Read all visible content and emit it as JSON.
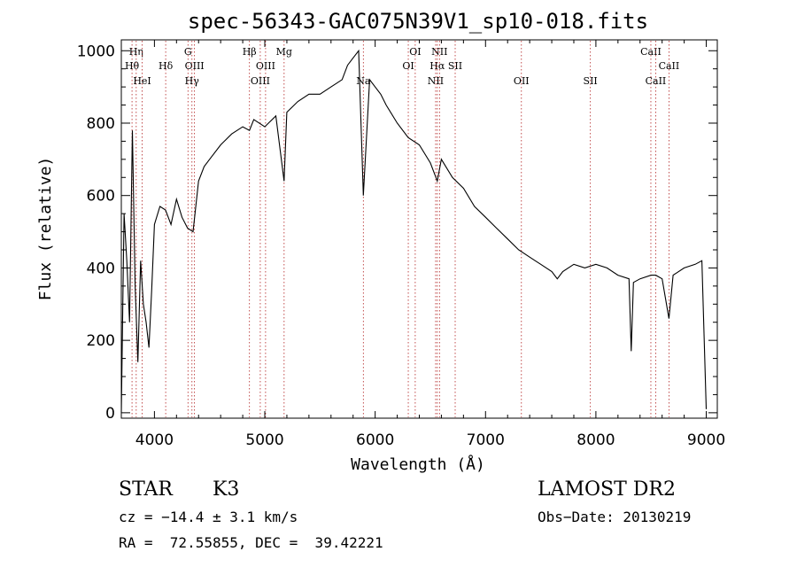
{
  "chart_data": {
    "type": "line",
    "title": "spec-56343-GAC075N39V1_sp10-018.fits",
    "xlabel": "Wavelength (Å)",
    "ylabel": "Flux (relative)",
    "xlim": [
      3700,
      9100
    ],
    "ylim": [
      -15,
      1030
    ],
    "xticks": [
      4000,
      5000,
      6000,
      7000,
      8000,
      9000
    ],
    "yticks": [
      0,
      200,
      400,
      600,
      800,
      1000
    ],
    "grid": false,
    "line_color": "#000000",
    "marker_color": "#b22222",
    "spectrum": {
      "x": [
        3700,
        3725,
        3750,
        3775,
        3800,
        3825,
        3850,
        3875,
        3900,
        3925,
        3950,
        3975,
        4000,
        4050,
        4100,
        4150,
        4200,
        4250,
        4300,
        4350,
        4400,
        4450,
        4500,
        4600,
        4700,
        4800,
        4861,
        4900,
        5000,
        5100,
        5175,
        5200,
        5300,
        5400,
        5500,
        5600,
        5700,
        5750,
        5800,
        5850,
        5893,
        5950,
        6000,
        6050,
        6100,
        6200,
        6300,
        6400,
        6500,
        6563,
        6600,
        6700,
        6800,
        6900,
        7000,
        7100,
        7200,
        7300,
        7400,
        7450,
        7500,
        7600,
        7650,
        7700,
        7800,
        7900,
        8000,
        8100,
        8200,
        8300,
        8320,
        8340,
        8400,
        8500,
        8542,
        8600,
        8662,
        8700,
        8800,
        8900,
        8960,
        9000
      ],
      "y": [
        0,
        550,
        420,
        250,
        780,
        350,
        140,
        420,
        300,
        250,
        180,
        340,
        520,
        570,
        560,
        520,
        590,
        540,
        510,
        500,
        640,
        680,
        700,
        740,
        770,
        790,
        780,
        810,
        790,
        820,
        640,
        830,
        860,
        880,
        880,
        900,
        920,
        960,
        980,
        1000,
        600,
        920,
        900,
        880,
        850,
        800,
        760,
        740,
        690,
        640,
        700,
        650,
        620,
        570,
        540,
        510,
        480,
        450,
        430,
        420,
        410,
        390,
        370,
        390,
        410,
        400,
        410,
        400,
        380,
        370,
        170,
        360,
        370,
        380,
        380,
        370,
        260,
        380,
        400,
        410,
        420,
        10
      ]
    },
    "lines": [
      {
        "label": "Hη",
        "x": 3835,
        "row": 1
      },
      {
        "label": "Hθ",
        "x": 3797,
        "row": 2
      },
      {
        "label": "HeI",
        "x": 3889,
        "row": 3
      },
      {
        "label": "Hδ",
        "x": 4102,
        "row": 2
      },
      {
        "label": "G",
        "x": 4304,
        "row": 1
      },
      {
        "label": "OIII",
        "x": 4363,
        "row": 2
      },
      {
        "label": "Hγ",
        "x": 4340,
        "row": 3
      },
      {
        "label": "Hβ",
        "x": 4861,
        "row": 1
      },
      {
        "label": "OIII",
        "x": 5007,
        "row": 2
      },
      {
        "label": "OIII",
        "x": 4959,
        "row": 3
      },
      {
        "label": "Mg",
        "x": 5175,
        "row": 1
      },
      {
        "label": "Na",
        "x": 5893,
        "row": 3
      },
      {
        "label": "OI",
        "x": 6363,
        "row": 1
      },
      {
        "label": "OI",
        "x": 6300,
        "row": 2
      },
      {
        "label": "NII",
        "x": 6583,
        "row": 1
      },
      {
        "label": "Hα",
        "x": 6563,
        "row": 2
      },
      {
        "label": "SII",
        "x": 6725,
        "row": 2
      },
      {
        "label": "NII",
        "x": 6548,
        "row": 3
      },
      {
        "label": "OII",
        "x": 7325,
        "row": 3
      },
      {
        "label": "SII",
        "x": 7950,
        "row": 3
      },
      {
        "label": "CaII",
        "x": 8498,
        "row": 1
      },
      {
        "label": "CaII",
        "x": 8662,
        "row": 2
      },
      {
        "label": "CaII",
        "x": 8542,
        "row": 3
      }
    ]
  },
  "info": {
    "class": "STAR",
    "subclass": "K3",
    "survey": "LAMOST DR2",
    "cz": "cz = −14.4 ± 3.1 km/s",
    "obs_date": "Obs−Date: 20130219",
    "coords": "RA =  72.55855, DEC =  39.42221"
  }
}
